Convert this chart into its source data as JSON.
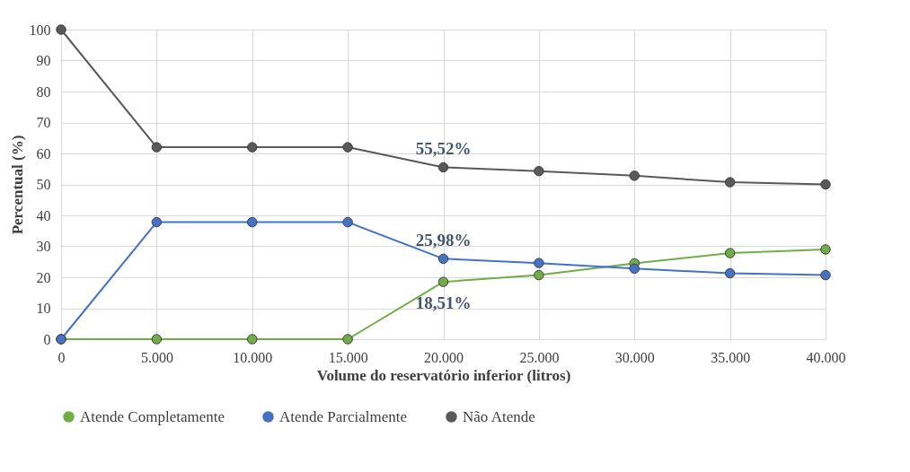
{
  "chart_data": {
    "type": "line",
    "xlabel": "Volume do reservatório inferior (litros)",
    "ylabel": "Percentual (%)",
    "categories": [
      "0",
      "5.000",
      "10.000",
      "15.000",
      "20.000",
      "25.000",
      "30.000",
      "35.000",
      "40.000"
    ],
    "series": [
      {
        "name": "Atende Completamente",
        "color": "#70ad47",
        "values": [
          0,
          0,
          0,
          0,
          18.51,
          20.7,
          24.5,
          27.8,
          29
        ]
      },
      {
        "name": "Atende Parcialmente",
        "color": "#4472c4",
        "values": [
          0,
          37.8,
          37.8,
          37.8,
          25.98,
          24.6,
          22.8,
          21.3,
          20.7
        ]
      },
      {
        "name": "Não Atende",
        "color": "#595959",
        "values": [
          100,
          62,
          62,
          62,
          55.52,
          54.3,
          52.8,
          50.7,
          50
        ]
      }
    ],
    "ylim": [
      0,
      100
    ],
    "yticks": [
      0,
      10,
      20,
      30,
      40,
      50,
      60,
      70,
      80,
      90,
      100
    ],
    "annotations": [
      {
        "text": "55,52%",
        "x": "20.000",
        "y": 55.52
      },
      {
        "text": "25,98%",
        "x": "20.000",
        "y": 25.98
      },
      {
        "text": "18,51%",
        "x": "20.000",
        "y": 18.51
      }
    ],
    "grid": true,
    "legend": "bottom",
    "marker": "circle",
    "line_style": "solid"
  }
}
